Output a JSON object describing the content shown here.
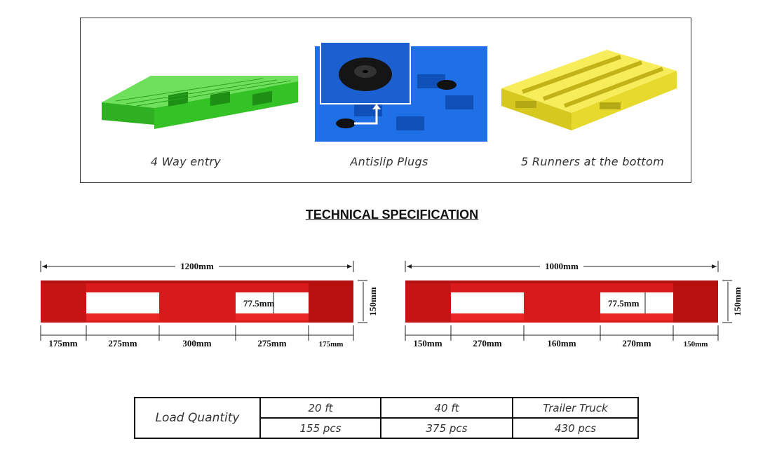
{
  "features": [
    {
      "caption": "4 Way entry",
      "color": "#39d12b",
      "icon": "green-pallet-image"
    },
    {
      "caption": "Antislip Plugs",
      "color": "#1f6fe6",
      "icon": "antislip-plug-image"
    },
    {
      "caption": "5 Runners at the bottom",
      "color": "#f2e53a",
      "icon": "yellow-pallet-image"
    }
  ],
  "heading": "TECHNICAL SPECIFICATION",
  "pallets": [
    {
      "total": "1200mm",
      "height": "150mm",
      "opening": "77.5mm",
      "segments": [
        "175mm",
        "275mm",
        "300mm",
        "275mm",
        "175mm"
      ],
      "color": "#d81a1a"
    },
    {
      "total": "1000mm",
      "height": "150mm",
      "opening": "77.5mm",
      "segments": [
        "150mm",
        "270mm",
        "160mm",
        "270mm",
        "150mm"
      ],
      "color": "#d81a1a"
    }
  ],
  "load_table": {
    "row_label": "Load Quantity",
    "headers": [
      "20 ft",
      "40 ft",
      "Trailer Truck"
    ],
    "values": [
      "155 pcs",
      "375 pcs",
      "430 pcs"
    ]
  }
}
